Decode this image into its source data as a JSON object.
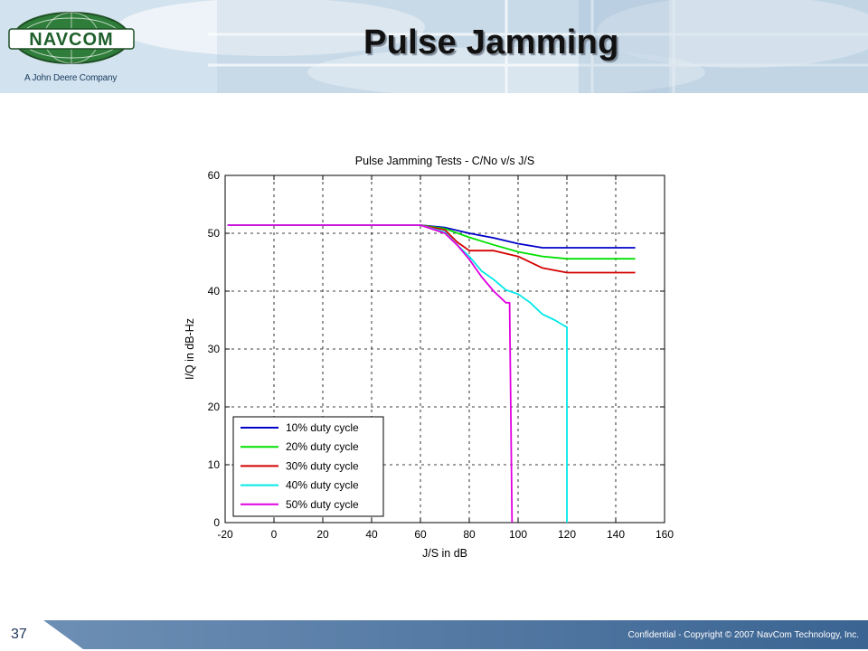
{
  "header": {
    "logo_text": "NAVCOM",
    "tagline": "A John Deere Company",
    "slide_title": "Pulse Jamming"
  },
  "footer": {
    "page_number": "37",
    "copyright": "Confidential - Copyright © 2007 NavCom Technology, Inc."
  },
  "colors": {
    "series": [
      "#0000c8",
      "#00e000",
      "#d40000",
      "#00e8e8",
      "#e000e0"
    ],
    "footer_bar": "#4a6f9a"
  },
  "chart_data": {
    "type": "line",
    "title": "Pulse Jamming Tests - C/No v/s J/S",
    "xlabel": "J/S in dB",
    "ylabel": "I/Q in dB-Hz",
    "xlim": [
      -20,
      160
    ],
    "ylim": [
      0,
      60
    ],
    "xticks": [
      "-20",
      "0",
      "20",
      "40",
      "60",
      "80",
      "100",
      "120",
      "140",
      "160"
    ],
    "yticks": [
      "0",
      "10",
      "20",
      "30",
      "40",
      "50",
      "60"
    ],
    "grid": true,
    "legend_position": "bottom-left",
    "series": [
      {
        "name": "10% duty cycle",
        "x": [
          -19,
          0,
          20,
          40,
          60,
          70,
          80,
          90,
          100,
          110,
          120,
          130,
          140,
          148
        ],
        "y": [
          51.4,
          51.4,
          51.4,
          51.4,
          51.4,
          51.0,
          50.0,
          49.2,
          48.2,
          47.5,
          47.5,
          47.5,
          47.5,
          47.5
        ]
      },
      {
        "name": "20% duty cycle",
        "x": [
          -19,
          0,
          20,
          40,
          60,
          70,
          80,
          90,
          100,
          110,
          120,
          130,
          140,
          148
        ],
        "y": [
          51.4,
          51.4,
          51.4,
          51.4,
          51.4,
          50.8,
          49.3,
          48.0,
          46.8,
          46.0,
          45.6,
          45.6,
          45.6,
          45.6
        ]
      },
      {
        "name": "30% duty cycle",
        "x": [
          -19,
          0,
          20,
          40,
          60,
          70,
          75,
          80,
          90,
          100,
          110,
          120,
          130,
          140,
          148
        ],
        "y": [
          51.4,
          51.4,
          51.4,
          51.4,
          51.4,
          50.6,
          48.5,
          47.0,
          47.0,
          46.0,
          44.0,
          43.2,
          43.2,
          43.2,
          43.2
        ]
      },
      {
        "name": "40% duty cycle",
        "x": [
          -19,
          0,
          20,
          40,
          60,
          70,
          75,
          80,
          85,
          90,
          95,
          100,
          105,
          110,
          115,
          119,
          120,
          120
        ],
        "y": [
          51.4,
          51.4,
          51.4,
          51.4,
          51.4,
          50.2,
          48.0,
          46.0,
          43.5,
          42.0,
          40.2,
          39.5,
          38.0,
          36.0,
          35.0,
          34.0,
          33.8,
          0
        ]
      },
      {
        "name": "50% duty cycle",
        "x": [
          -19,
          0,
          20,
          40,
          60,
          70,
          75,
          80,
          85,
          90,
          95,
          96.5,
          97,
          97.5
        ],
        "y": [
          51.4,
          51.4,
          51.4,
          51.4,
          51.4,
          50.0,
          48.0,
          45.5,
          42.5,
          40.0,
          38.0,
          38.0,
          20.0,
          0
        ]
      }
    ]
  }
}
